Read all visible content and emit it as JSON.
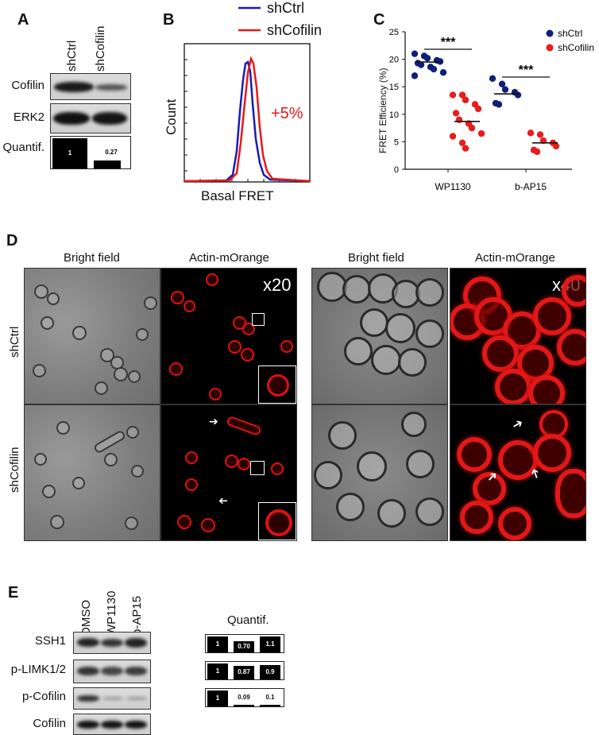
{
  "panelA": {
    "label": "A",
    "lanes": [
      "shCtrl",
      "shCofilin"
    ],
    "rows": [
      "Cofilin",
      "ERK2",
      "Quantif."
    ],
    "quant": [
      {
        "label": "1",
        "value": 1.0
      },
      {
        "label": "0.27",
        "value": 0.27
      }
    ]
  },
  "panelB": {
    "label": "B",
    "legend": [
      "shCtrl",
      "shCofilin"
    ],
    "ylabel": "Count",
    "xlabel": "Basal FRET",
    "annotation": "+5%",
    "colors": {
      "shCtrl": "#1b1bb0",
      "shCofilin": "#e81818"
    }
  },
  "chart_data": {
    "type": "scatter",
    "categories": [
      "WP1130",
      "b-AP15"
    ],
    "ylabel": "FRET Efficiency (%)",
    "ylim": [
      0,
      25
    ],
    "yticks": [
      "0",
      "5",
      "10",
      "15",
      "20",
      "25"
    ],
    "legend": [
      "shCtrl",
      "shCofilin"
    ],
    "significance": [
      "***",
      "***"
    ],
    "series": [
      {
        "name": "shCtrl",
        "color": "#0f1f7a",
        "groups": [
          [
            21,
            20.6,
            20.2,
            19.8,
            19.6,
            19.3,
            19.0,
            18.6,
            18.2,
            17.6,
            17.0
          ],
          [
            16.5,
            15.5,
            14.5,
            14.0,
            13.5,
            12.0,
            11.8
          ]
        ],
        "means": [
          19.5,
          13.7
        ]
      },
      {
        "name": "shCofilin",
        "color": "#e81c1c",
        "groups": [
          [
            13.5,
            13.5,
            12.6,
            11.8,
            11.0,
            10.2,
            9.0,
            8.3,
            7.5,
            6.5,
            6.0,
            4.8,
            3.8
          ],
          [
            6.6,
            6.3,
            5.2,
            4.8,
            4.2,
            3.5,
            3.2
          ]
        ],
        "means": [
          8.7,
          4.8
        ]
      }
    ]
  },
  "panelC": {
    "label": "C"
  },
  "panelD": {
    "label": "D",
    "columns": [
      "Bright field",
      "Actin-mOrange",
      "Bright field",
      "Actin-mOrange"
    ],
    "rows": [
      "shCtrl",
      "shCofilin"
    ],
    "mag20": "x20",
    "mag40": "x40"
  },
  "panelE": {
    "label": "E",
    "lanes": [
      "DMSO",
      "WP1130",
      "b-AP15"
    ],
    "rows": [
      "SSH1",
      "p-LIMK1/2",
      "p-Cofilin",
      "Cofilin"
    ],
    "quant_title": "Quantif.",
    "quant": [
      [
        {
          "label": "1",
          "value": 1.0
        },
        {
          "label": "0.70",
          "value": 0.7
        },
        {
          "label": "1.1",
          "value": 1.1
        }
      ],
      [
        {
          "label": "1",
          "value": 1.0
        },
        {
          "label": "0.87",
          "value": 0.87
        },
        {
          "label": "0.9",
          "value": 0.9
        }
      ],
      [
        {
          "label": "1",
          "value": 1.0
        },
        {
          "label": "0.09",
          "value": 0.09
        },
        {
          "label": "0.1",
          "value": 0.1
        }
      ]
    ]
  }
}
